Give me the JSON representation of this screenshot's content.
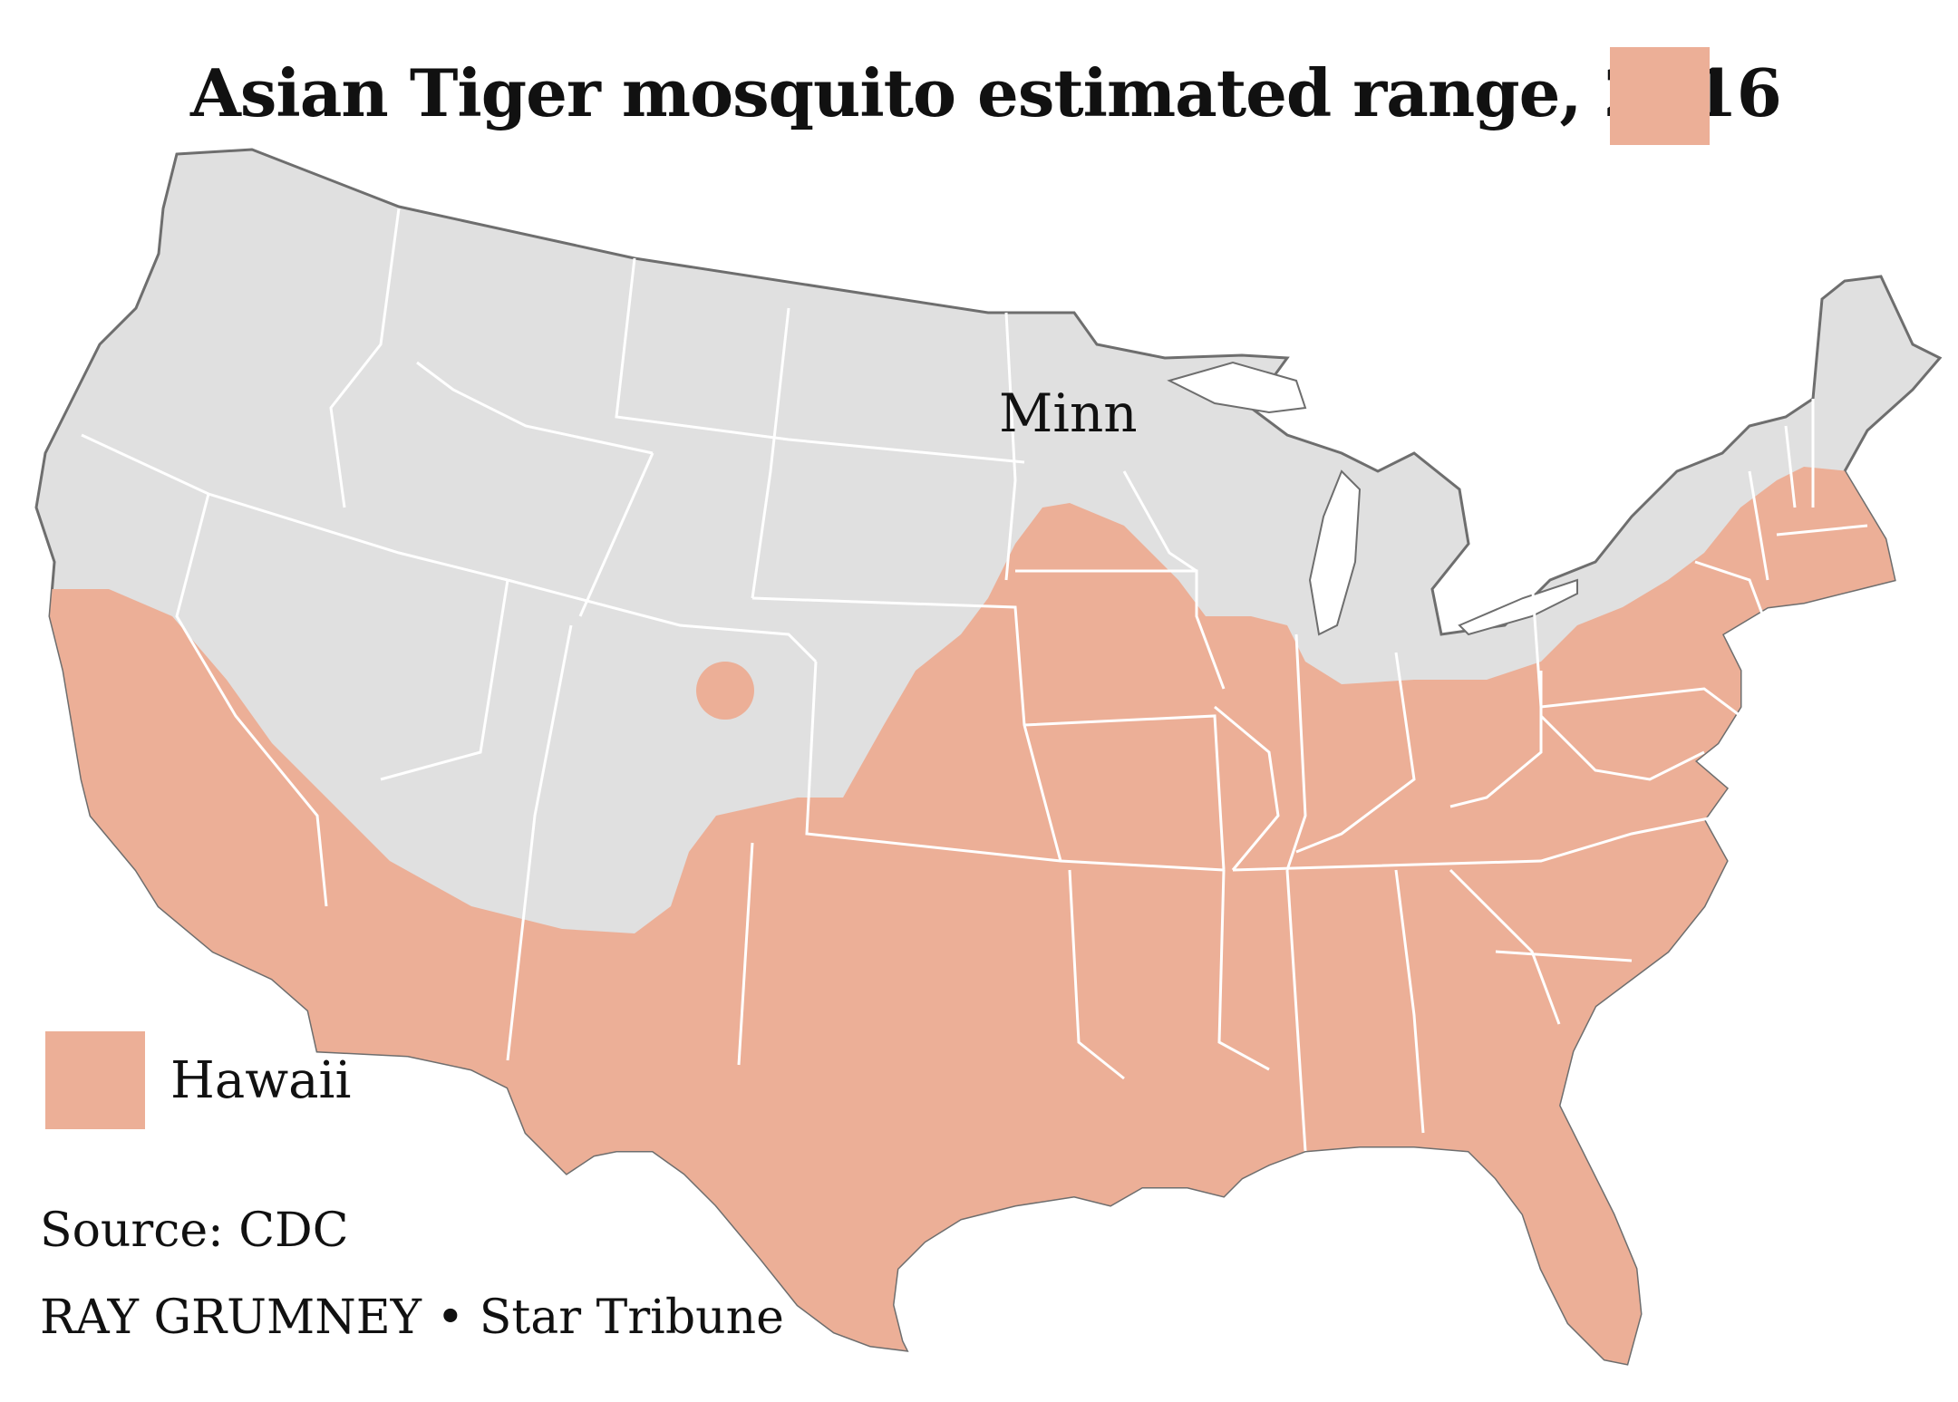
{
  "title": "Asian Tiger mosquito estimated range, 2016",
  "colors": {
    "range": "#ecaf97",
    "land": "#e0e0e0",
    "border": "#ffffff",
    "coast": "#6e6e6e"
  },
  "map": {
    "label": "Minn"
  },
  "legend": {
    "hawaii_label": "Hawaii"
  },
  "source": "Source: CDC",
  "credit": "RAY GRUMNEY • Star Tribune"
}
